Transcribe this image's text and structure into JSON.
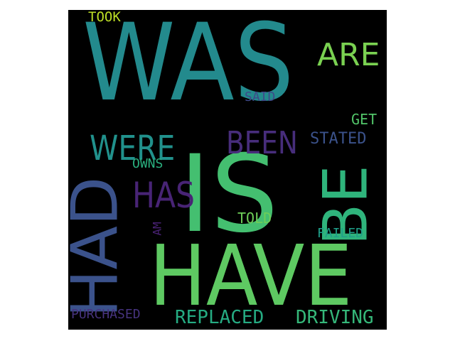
{
  "words": {
    "was": {
      "text": "WAS",
      "color": "#238a8d"
    },
    "is": {
      "text": "IS",
      "color": "#44bf70"
    },
    "have": {
      "text": "HAVE",
      "color": "#5ec962"
    },
    "had": {
      "text": "HAD",
      "color": "#3b528b"
    },
    "be": {
      "text": "BE",
      "color": "#2fb47c"
    },
    "are": {
      "text": "ARE",
      "color": "#7ad151"
    },
    "been": {
      "text": "BEEN",
      "color": "#472d7b"
    },
    "were": {
      "text": "WERE",
      "color": "#21918c"
    },
    "has": {
      "text": "HAS",
      "color": "#482475"
    },
    "took": {
      "text": "TOOK",
      "color": "#bddf26"
    },
    "said": {
      "text": "SAID",
      "color": "#3e4989"
    },
    "get": {
      "text": "GET",
      "color": "#52c569"
    },
    "stated": {
      "text": "STATED",
      "color": "#3b528b"
    },
    "owns": {
      "text": "OWNS",
      "color": "#2ab07f"
    },
    "am": {
      "text": "AM",
      "color": "#482173"
    },
    "told": {
      "text": "TOLD",
      "color": "#6ece58"
    },
    "failed": {
      "text": "FAILED",
      "color": "#1f9e89"
    },
    "purchased": {
      "text": "PURCHASED",
      "color": "#46337e"
    },
    "replaced": {
      "text": "REPLACED",
      "color": "#25ab82"
    },
    "driving": {
      "text": "DRIVING",
      "color": "#35b779"
    }
  }
}
